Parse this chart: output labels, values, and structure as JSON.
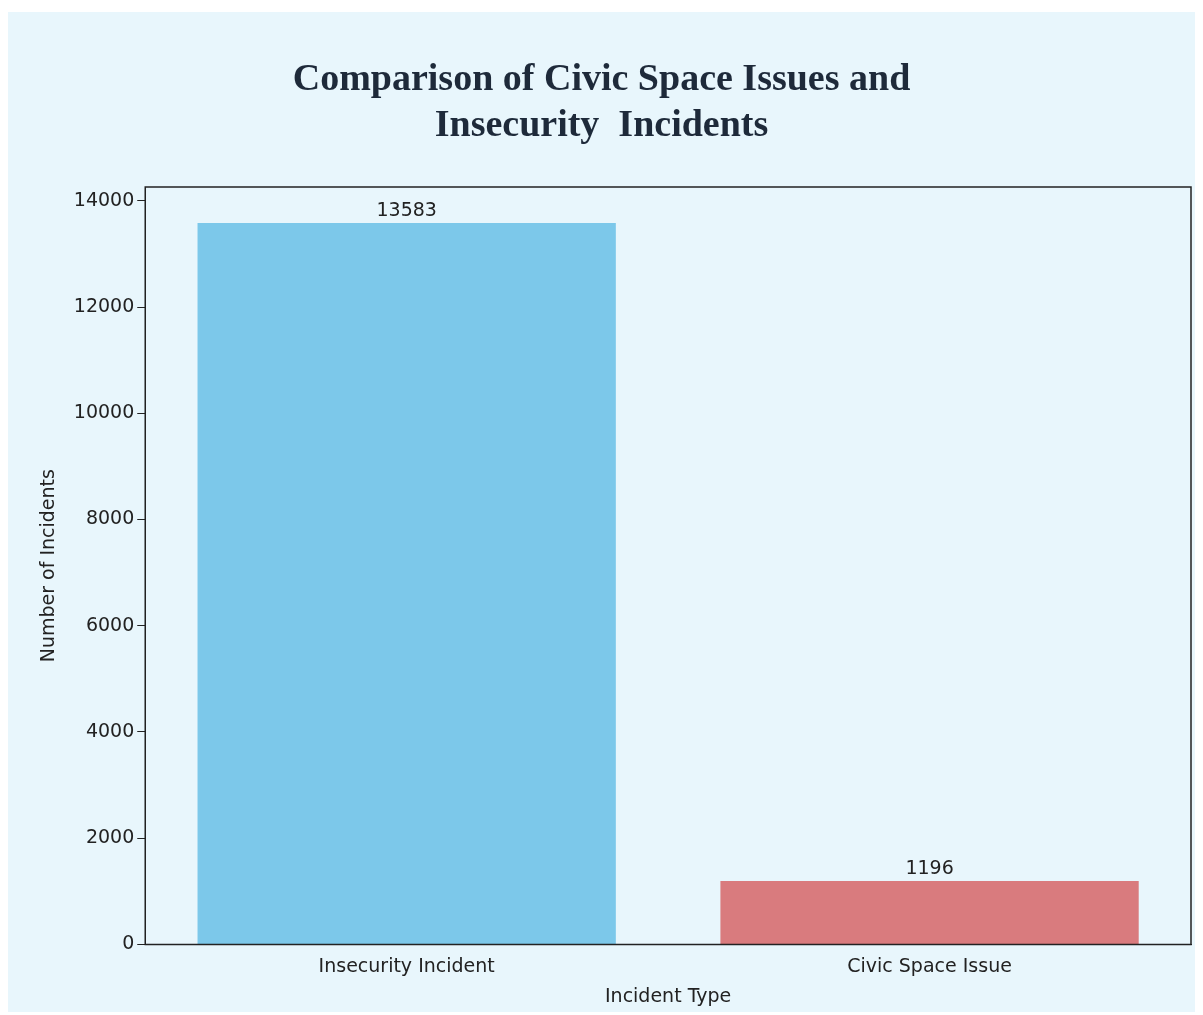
{
  "chart_data": {
    "type": "bar",
    "title": "Comparison of Civic Space Issues and Insecurity  Incidents",
    "xlabel": "Incident Type",
    "ylabel": "Number of Incidents",
    "categories": [
      "Insecurity Incident",
      "Civic Space Issue"
    ],
    "values": [
      13583,
      1196
    ],
    "colors": [
      "#7cc8ea",
      "#d97b7e"
    ],
    "ylim": [
      0,
      14260
    ],
    "yticks": [
      0,
      2000,
      4000,
      6000,
      8000,
      10000,
      12000,
      14000
    ],
    "data_labels": true,
    "grid": false,
    "legend": false
  }
}
